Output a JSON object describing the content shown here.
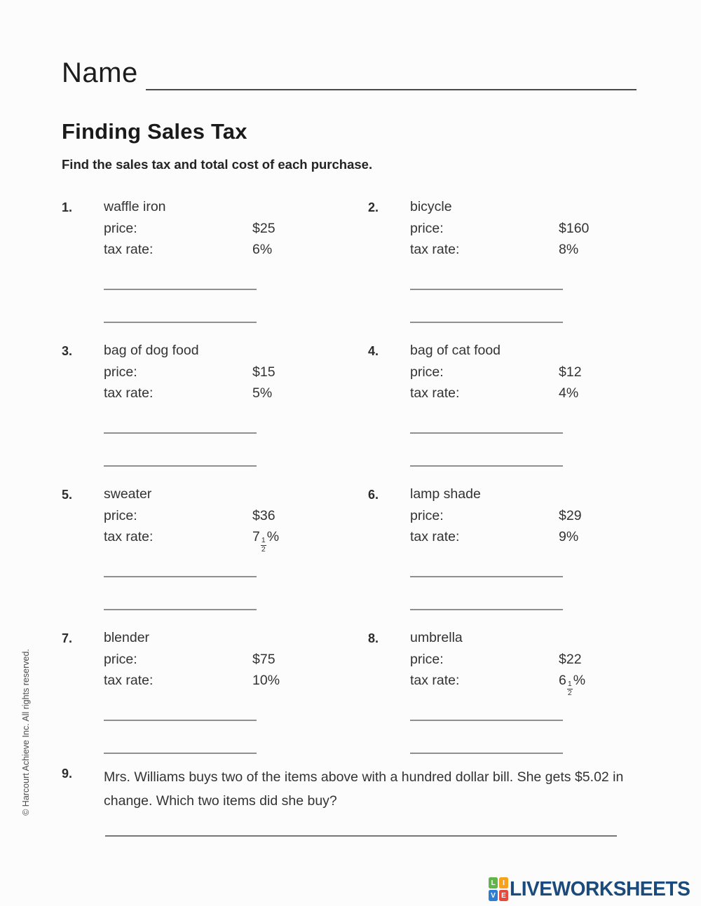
{
  "page": {
    "name_label": "Name",
    "title": "Finding Sales Tax",
    "instructions": "Find the sales tax and total cost of each purchase.",
    "sidebar_copyright": "© Harcourt Achieve Inc. All rights reserved."
  },
  "labels": {
    "price": "price:",
    "tax_rate": "tax rate:"
  },
  "problems": [
    {
      "number": "1.",
      "item": "waffle iron",
      "price": "$25",
      "tax_rate": "6%"
    },
    {
      "number": "2.",
      "item": "bicycle",
      "price": "$160",
      "tax_rate": "8%"
    },
    {
      "number": "3.",
      "item": "bag of dog food",
      "price": "$15",
      "tax_rate": "5%"
    },
    {
      "number": "4.",
      "item": "bag of cat food",
      "price": "$12",
      "tax_rate": "4%"
    },
    {
      "number": "5.",
      "item": "sweater",
      "price": "$36",
      "tax_rate": {
        "whole": "7",
        "num": "1",
        "den": "2",
        "suffix": "%"
      }
    },
    {
      "number": "6.",
      "item": "lamp shade",
      "price": "$29",
      "tax_rate": "9%"
    },
    {
      "number": "7.",
      "item": "blender",
      "price": "$75",
      "tax_rate": "10%"
    },
    {
      "number": "8.",
      "item": "umbrella",
      "price": "$22",
      "tax_rate": {
        "whole": "6",
        "num": "1",
        "den": "2",
        "suffix": "%"
      }
    }
  ],
  "word_problem": {
    "number": "9.",
    "text": "Mrs. Williams buys two of the items above with a hundred dollar bill. She gets $5.02 in change. Which two items did she buy?"
  },
  "footer": {
    "brand": "LIVEWORKSHEETS",
    "brand_color": "#1b4a7c",
    "tiles": [
      {
        "letter": "L",
        "color": "#61b54b"
      },
      {
        "letter": "I",
        "color": "#f6a21d"
      },
      {
        "letter": "V",
        "color": "#2d7dd2"
      },
      {
        "letter": "E",
        "color": "#e54b3c"
      }
    ]
  }
}
